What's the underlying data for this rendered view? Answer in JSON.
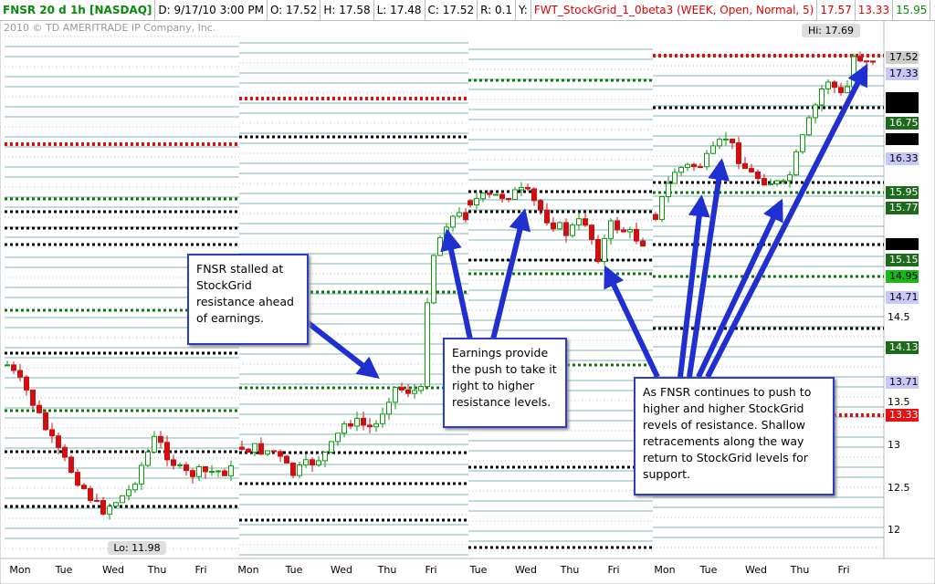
{
  "header": {
    "symbol": "FNSR 20 d 1h [NASDAQ]",
    "date": "D: 9/17/10 3:00 PM",
    "open": "O: 17.52",
    "high": "H: 17.58",
    "low": "L: 17.48",
    "close": "C: 17.52",
    "range": "R: 0.1",
    "y": "Y:",
    "study": "FWT_StockGrid_1_0beta3 (WEEK, Open, Normal, 5)",
    "study_values": [
      {
        "text": "17.57",
        "style": "red"
      },
      {
        "text": "13.33",
        "style": "red"
      },
      {
        "text": "15.95",
        "style": "green"
      },
      {
        "text": "1...",
        "style": "plain"
      }
    ]
  },
  "copyright": "2010 © TD AMERITRADE IP Company, Inc.",
  "price_labels": [
    {
      "text": "17.52",
      "style": "last"
    },
    {
      "text": "17.33",
      "style": "lavender"
    },
    {
      "text": "16.75",
      "style": "green"
    },
    {
      "text": "16.33",
      "style": "lavender"
    },
    {
      "text": "15.95",
      "style": "green"
    },
    {
      "text": "15.77",
      "style": "green"
    },
    {
      "text": "15.15",
      "style": "green"
    },
    {
      "text": "14.95",
      "style": "bright"
    },
    {
      "text": "14.71",
      "style": "lavender"
    },
    {
      "text": "14.13",
      "style": "green"
    },
    {
      "text": "13.71",
      "style": "lavender"
    },
    {
      "text": "13.33",
      "style": "red"
    }
  ],
  "axis_labels": [
    "14.5",
    "13.5",
    "13",
    "12.5",
    "12"
  ],
  "days": [
    "Mon",
    "Tue",
    "Wed",
    "Thu",
    "Fri",
    "Mon",
    "Tue",
    "Wed",
    "Thu",
    "Fri",
    "Tue",
    "Wed",
    "Thu",
    "Fri",
    "Mon",
    "Tue",
    "Wed",
    "Thu",
    "Fri"
  ],
  "hi_label": "Hi: 17.69",
  "lo_label": "Lo: 11.98",
  "annotations": [
    "FNSR stalled at StockGrid resistance ahead of earnings.",
    "Earnings provide the push to take it right to higher resistance levels.",
    "As FNSR continues to push to higher and higher StockGrid revels of resistance.  Shallow retracements along the way return to StockGrid levels for support."
  ]
}
